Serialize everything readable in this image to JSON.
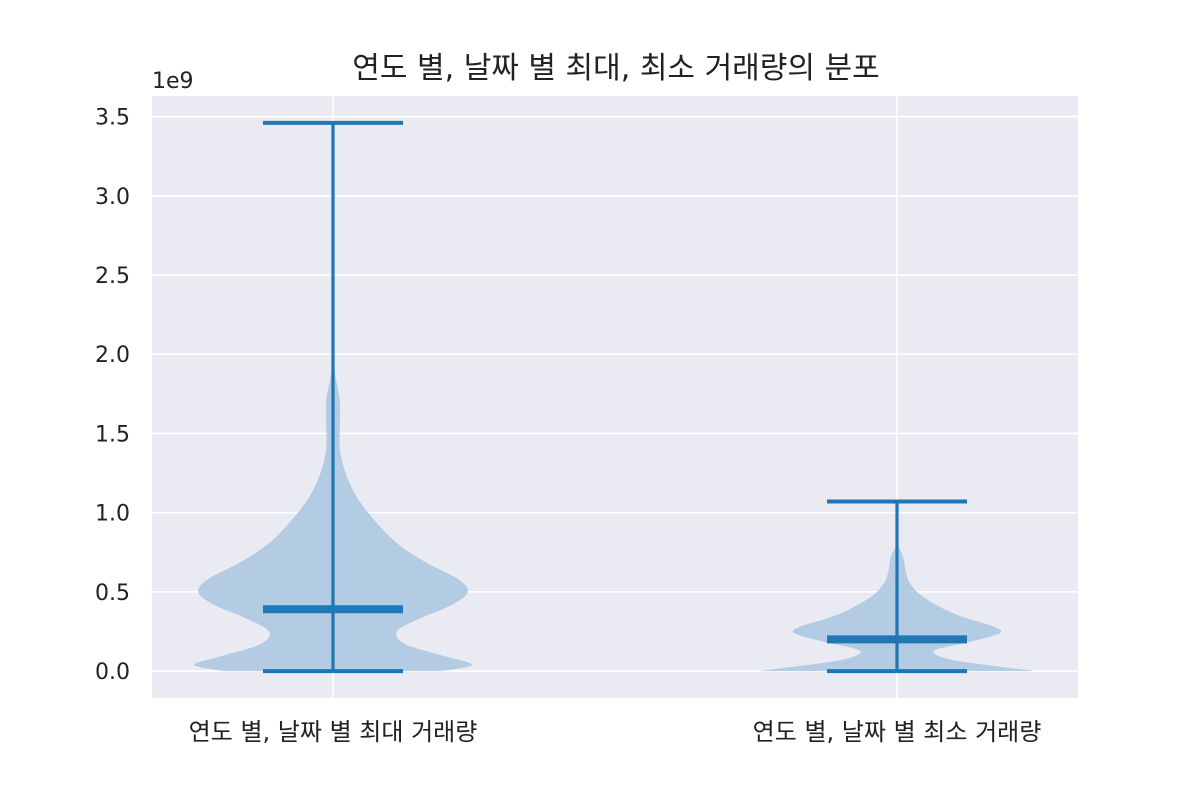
{
  "chart_data": {
    "type": "violin",
    "title": "연도 별, 날짜 별 최대, 최소 거래량의 분포",
    "xlabel": "",
    "ylabel": "",
    "y_offset_label": "1e9",
    "ylim": [
      -0.17,
      3.63
    ],
    "y_ticks": [
      0.0,
      0.5,
      1.0,
      1.5,
      2.0,
      2.5,
      3.0,
      3.5
    ],
    "y_tick_labels": [
      "0.0",
      "0.5",
      "1.0",
      "1.5",
      "2.0",
      "2.5",
      "3.0",
      "3.5"
    ],
    "categories": [
      "연도 별, 날짜 별 최대 거래량",
      "연도 별, 날짜 별 최소 거래량"
    ],
    "grid": true,
    "legend": "none",
    "colors": {
      "background": "#eaeaf2",
      "grid": "#ffffff",
      "body": "#a9c5e1",
      "line": "#1f77b4"
    },
    "series": [
      {
        "min": 0.0,
        "max": 3.46,
        "median": 0.39,
        "density": [
          [
            0.0,
            0.78
          ],
          [
            0.04,
            1.0
          ],
          [
            0.1,
            0.78
          ],
          [
            0.17,
            0.52
          ],
          [
            0.25,
            0.46
          ],
          [
            0.33,
            0.62
          ],
          [
            0.42,
            0.86
          ],
          [
            0.5,
            0.97
          ],
          [
            0.58,
            0.9
          ],
          [
            0.68,
            0.68
          ],
          [
            0.8,
            0.47
          ],
          [
            0.95,
            0.3
          ],
          [
            1.1,
            0.17
          ],
          [
            1.25,
            0.09
          ],
          [
            1.4,
            0.05
          ],
          [
            1.55,
            0.05
          ],
          [
            1.7,
            0.05
          ],
          [
            1.8,
            0.03
          ],
          [
            1.9,
            0.01
          ],
          [
            2.0,
            0.0
          ]
        ]
      },
      {
        "min": 0.0,
        "max": 1.07,
        "median": 0.2,
        "density": [
          [
            0.0,
            1.0
          ],
          [
            0.03,
            0.72
          ],
          [
            0.07,
            0.4
          ],
          [
            0.11,
            0.27
          ],
          [
            0.14,
            0.3
          ],
          [
            0.19,
            0.55
          ],
          [
            0.24,
            0.74
          ],
          [
            0.28,
            0.7
          ],
          [
            0.34,
            0.48
          ],
          [
            0.4,
            0.32
          ],
          [
            0.48,
            0.17
          ],
          [
            0.56,
            0.09
          ],
          [
            0.64,
            0.06
          ],
          [
            0.7,
            0.05
          ],
          [
            0.75,
            0.03
          ],
          [
            0.8,
            0.0
          ]
        ]
      }
    ]
  }
}
